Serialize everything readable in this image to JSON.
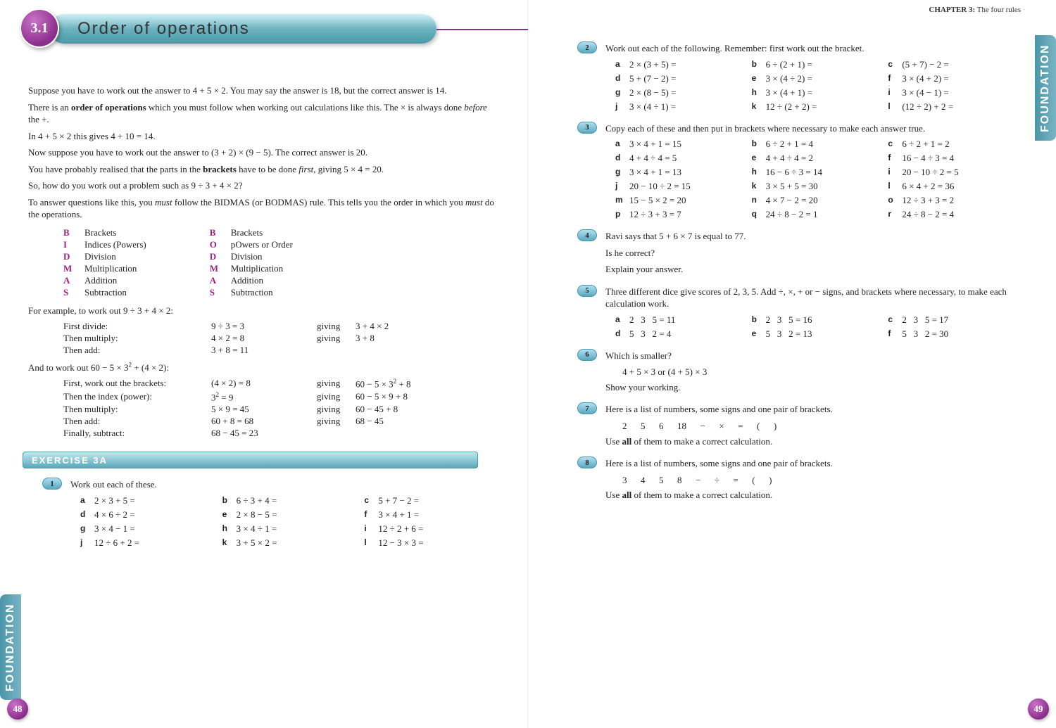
{
  "chapter_badge": "3.1",
  "title": "Order of operations",
  "chapter_header_bold": "CHAPTER 3:",
  "chapter_header_rest": " The four rules",
  "page_left_num": "48",
  "page_right_num": "49",
  "foundation_label": "FOUNDATION",
  "intro": {
    "p1": "Suppose you have to work out the answer to 4 + 5 × 2. You may say the answer is 18, but the correct answer is 14.",
    "p2a": "There is an ",
    "p2b": "order of operations",
    "p2c": " which you must follow when working out calculations like this. The × is always done ",
    "p2d": "before",
    "p2e": " the +.",
    "p3": "In 4 + 5 × 2 this gives 4 + 10 = 14.",
    "p4": "Now suppose you have to work out the answer to (3 + 2) × (9 − 5). The correct answer is 20.",
    "p5a": "You have probably realised that the parts in the ",
    "p5b": "brackets",
    "p5c": " have to be done ",
    "p5d": "first",
    "p5e": ", giving 5 × 4 = 20.",
    "p6": "So, how do you work out a problem such as 9 ÷ 3 + 4 × 2?",
    "p7a": "To answer questions like this, you ",
    "p7b": "must",
    "p7c": " follow the BIDMAS (or BODMAS) rule. This tells you the order in which you ",
    "p7d": "must",
    "p7e": " do the operations."
  },
  "bidmas_left": [
    {
      "l": "B",
      "w": "Brackets"
    },
    {
      "l": "I",
      "w": "Indices (Powers)"
    },
    {
      "l": "D",
      "w": "Division"
    },
    {
      "l": "M",
      "w": "Multiplication"
    },
    {
      "l": "A",
      "w": "Addition"
    },
    {
      "l": "S",
      "w": "Subtraction"
    }
  ],
  "bidmas_right": [
    {
      "l": "B",
      "w": "Brackets"
    },
    {
      "l": "O",
      "w": "pOwers or Order"
    },
    {
      "l": "D",
      "w": "Division"
    },
    {
      "l": "M",
      "w": "Multiplication"
    },
    {
      "l": "A",
      "w": "Addition"
    },
    {
      "l": "S",
      "w": "Subtraction"
    }
  ],
  "worked1_intro": "For example, to work out 9 ÷ 3 + 4 × 2:",
  "worked1": [
    {
      "label": "First divide:",
      "calc": "9 ÷ 3 = 3",
      "giving": "giving",
      "res": "3 + 4 × 2"
    },
    {
      "label": "Then multiply:",
      "calc": "4 × 2 = 8",
      "giving": "giving",
      "res": "3 + 8"
    },
    {
      "label": "Then add:",
      "calc": "3 + 8 = 11",
      "giving": "",
      "res": ""
    }
  ],
  "worked2_intro": "And to work out 60 − 5 × 3² + (4 × 2):",
  "worked2": [
    {
      "label": "First, work out the brackets:",
      "calc": "(4 × 2) = 8",
      "giving": "giving",
      "res": "60 − 5 × 3² + 8"
    },
    {
      "label": "Then the index (power):",
      "calc": "3² = 9",
      "giving": "giving",
      "res": "60 − 5 × 9 + 8"
    },
    {
      "label": "Then multiply:",
      "calc": "5 × 9 = 45",
      "giving": "giving",
      "res": "60 − 45 + 8"
    },
    {
      "label": "Then add:",
      "calc": "60 + 8 = 68",
      "giving": "giving",
      "res": "68 − 45"
    },
    {
      "label": "Finally, subtract:",
      "calc": "68 − 45 = 23",
      "giving": "",
      "res": ""
    }
  ],
  "exercise_label": "EXERCISE 3A",
  "q1": {
    "text": "Work out each of these.",
    "items": [
      {
        "l": "a",
        "t": "2 × 3 + 5 ="
      },
      {
        "l": "b",
        "t": "6 ÷ 3 + 4 ="
      },
      {
        "l": "c",
        "t": "5 + 7 − 2 ="
      },
      {
        "l": "d",
        "t": "4 × 6 ÷ 2 ="
      },
      {
        "l": "e",
        "t": "2 × 8 − 5 ="
      },
      {
        "l": "f",
        "t": "3 × 4 + 1 ="
      },
      {
        "l": "g",
        "t": "3 × 4 − 1 ="
      },
      {
        "l": "h",
        "t": "3 × 4 ÷ 1 ="
      },
      {
        "l": "i",
        "t": "12 ÷ 2 + 6 ="
      },
      {
        "l": "j",
        "t": "12 ÷ 6 + 2 ="
      },
      {
        "l": "k",
        "t": "3 + 5 × 2 ="
      },
      {
        "l": "l",
        "t": "12 − 3 × 3 ="
      }
    ]
  },
  "q2": {
    "text": "Work out each of the following. Remember: first work out the bracket.",
    "items": [
      {
        "l": "a",
        "t": "2 × (3 + 5) ="
      },
      {
        "l": "b",
        "t": "6 ÷ (2 + 1) ="
      },
      {
        "l": "c",
        "t": "(5 + 7) − 2 ="
      },
      {
        "l": "d",
        "t": "5 + (7 − 2) ="
      },
      {
        "l": "e",
        "t": "3 × (4 ÷ 2) ="
      },
      {
        "l": "f",
        "t": "3 × (4 + 2) ="
      },
      {
        "l": "g",
        "t": "2 × (8 − 5) ="
      },
      {
        "l": "h",
        "t": "3 × (4 + 1) ="
      },
      {
        "l": "i",
        "t": "3 × (4 − 1) ="
      },
      {
        "l": "j",
        "t": "3 × (4 ÷ 1) ="
      },
      {
        "l": "k",
        "t": "12 ÷ (2 + 2) ="
      },
      {
        "l": "l",
        "t": "(12 ÷ 2) + 2 ="
      }
    ]
  },
  "q3": {
    "text": "Copy each of these and then put in brackets where necessary to make each answer true.",
    "items": [
      {
        "l": "a",
        "t": "3 × 4 + 1 = 15"
      },
      {
        "l": "b",
        "t": "6 ÷ 2 + 1 = 4"
      },
      {
        "l": "c",
        "t": "6 ÷ 2 + 1 = 2"
      },
      {
        "l": "d",
        "t": "4 + 4 ÷ 4 = 5"
      },
      {
        "l": "e",
        "t": "4 + 4 ÷ 4 = 2"
      },
      {
        "l": "f",
        "t": "16 − 4 ÷ 3 = 4"
      },
      {
        "l": "g",
        "t": "3 × 4 + 1 = 13"
      },
      {
        "l": "h",
        "t": "16 − 6 ÷ 3 = 14"
      },
      {
        "l": "i",
        "t": "20 − 10 ÷ 2 = 5"
      },
      {
        "l": "j",
        "t": "20 − 10 ÷ 2 = 15"
      },
      {
        "l": "k",
        "t": "3 × 5 + 5 = 30"
      },
      {
        "l": "l",
        "t": "6 × 4 + 2 = 36"
      },
      {
        "l": "m",
        "t": "15 − 5 × 2 = 20"
      },
      {
        "l": "n",
        "t": "4 × 7 − 2 = 20"
      },
      {
        "l": "o",
        "t": "12 ÷ 3 + 3 = 2"
      },
      {
        "l": "p",
        "t": "12 ÷ 3 + 3 = 7"
      },
      {
        "l": "q",
        "t": "24 ÷ 8 − 2 = 1"
      },
      {
        "l": "r",
        "t": "24 ÷ 8 − 2 = 4"
      }
    ]
  },
  "q4": {
    "line1": "Ravi says that 5 + 6 × 7 is equal to 77.",
    "line2": "Is he correct?",
    "line3": "Explain your answer."
  },
  "q5": {
    "text": "Three different dice give scores of 2, 3, 5. Add ÷, ×, + or − signs, and brackets where necessary, to make each calculation work.",
    "items": [
      {
        "l": "a",
        "t": "2   3   5 = 11"
      },
      {
        "l": "b",
        "t": "2   3   5 = 16"
      },
      {
        "l": "c",
        "t": "2   3   5 = 17"
      },
      {
        "l": "d",
        "t": "5   3   2 = 4"
      },
      {
        "l": "e",
        "t": "5   3   2 = 13"
      },
      {
        "l": "f",
        "t": "5   3   2 = 30"
      }
    ]
  },
  "q6": {
    "line1": "Which is smaller?",
    "line2": "4 + 5 × 3 or (4 + 5) × 3",
    "line3": "Show your working."
  },
  "q7": {
    "line1": "Here is a list of numbers, some signs and one pair of brackets.",
    "line2": "2      5      6      18      −      ×      =      (      )",
    "line3a": "Use ",
    "line3b": "all",
    "line3c": " of them to make a correct calculation."
  },
  "q8": {
    "line1": "Here is a list of numbers, some signs and one pair of brackets.",
    "line2": "3      4      5      8      −      ÷      =      (      )",
    "line3a": "Use ",
    "line3b": "all",
    "line3c": " of them to make a correct calculation."
  },
  "colors": {
    "accent_purple": "#8b2d8b",
    "accent_teal": "#5aa8b8"
  }
}
